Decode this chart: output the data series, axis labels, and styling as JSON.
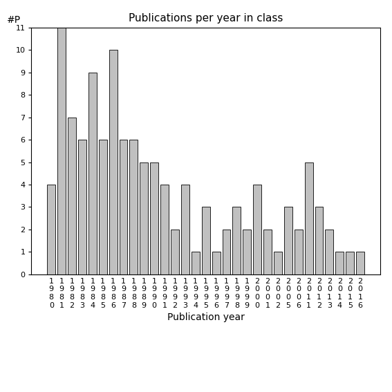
{
  "title": "Publications per year in class",
  "xlabel": "Publication year",
  "ylabel": "#P",
  "bar_color": "#c0c0c0",
  "bar_edgecolor": "#000000",
  "years": [
    "1980",
    "1981",
    "1982",
    "1983",
    "1984",
    "1985",
    "1986",
    "1987",
    "1988",
    "1989",
    "1990",
    "1991",
    "1992",
    "1993",
    "1994",
    "1995",
    "1996",
    "1997",
    "1998",
    "1999",
    "2000",
    "2001",
    "2002",
    "2005",
    "2006",
    "2011",
    "2012",
    "2013",
    "2014",
    "2015",
    "2016"
  ],
  "values": [
    4,
    11,
    7,
    6,
    9,
    6,
    10,
    6,
    6,
    5,
    5,
    4,
    2,
    4,
    1,
    3,
    1,
    2,
    3,
    2,
    4,
    2,
    1,
    3,
    2,
    5,
    3,
    2,
    1,
    1,
    1
  ],
  "ylim": [
    0,
    11
  ],
  "yticks": [
    0,
    1,
    2,
    3,
    4,
    5,
    6,
    7,
    8,
    9,
    10,
    11
  ],
  "background_color": "#ffffff",
  "title_fontsize": 11,
  "axis_fontsize": 10,
  "tick_fontsize": 8
}
